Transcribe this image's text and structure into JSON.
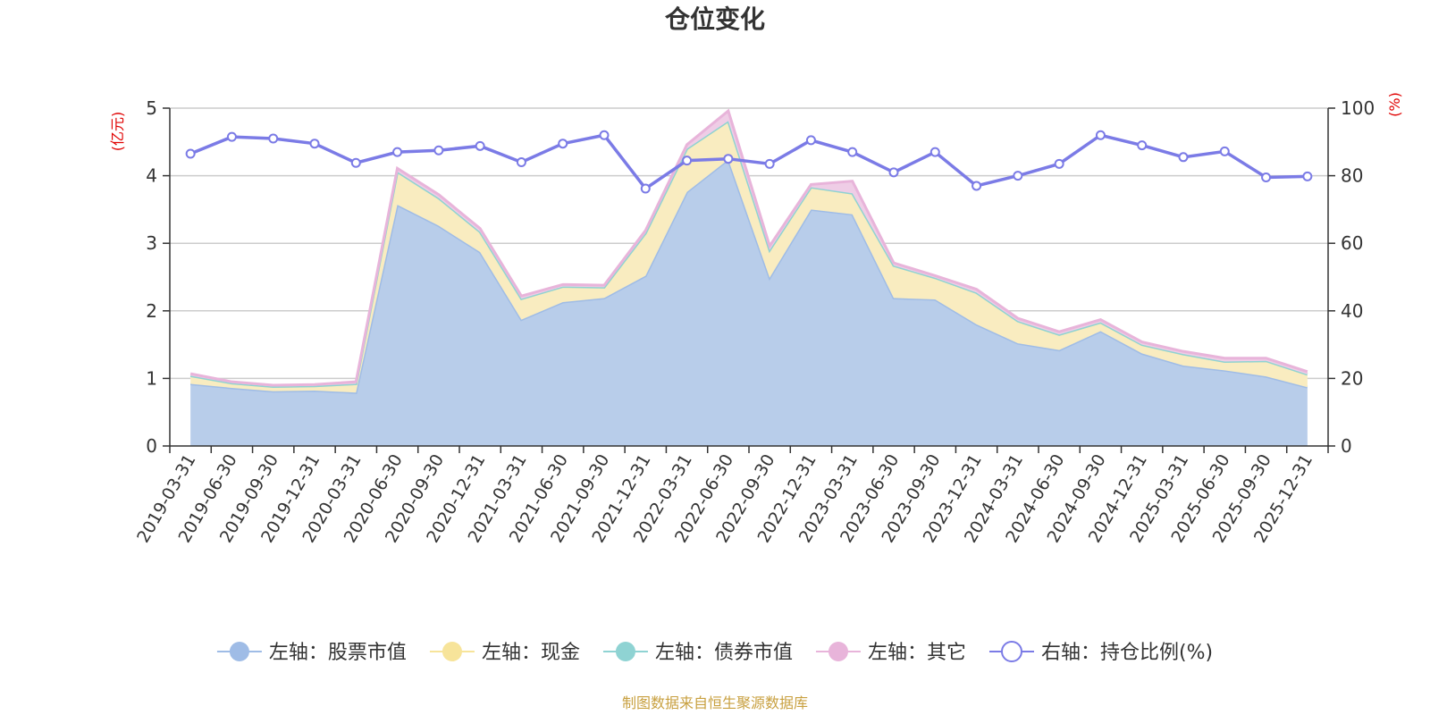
{
  "chart_data": {
    "type": "area",
    "title": "仓位变化",
    "source_text": "制图数据来自恒生聚源数据库",
    "categories": [
      "2019-03-31",
      "2019-06-30",
      "2019-09-30",
      "2019-12-31",
      "2020-03-31",
      "2020-06-30",
      "2020-09-30",
      "2020-12-31",
      "2021-03-31",
      "2021-06-30",
      "2021-09-30",
      "2021-12-31",
      "2022-03-31",
      "2022-06-30",
      "2022-09-30",
      "2022-12-31",
      "2023-03-31",
      "2023-06-30",
      "2023-09-30",
      "2023-12-31",
      "2024-03-31",
      "2024-06-30",
      "2024-09-30",
      "2024-12-31",
      "2025-03-31",
      "2025-06-30",
      "2025-09-30",
      "2025-12-31"
    ],
    "left_axis": {
      "name": "(亿元)",
      "min": 0,
      "max": 5,
      "ticks": [
        0,
        1,
        2,
        3,
        4,
        5
      ]
    },
    "right_axis": {
      "name": "(%)",
      "min": 0,
      "max": 100,
      "ticks": [
        0,
        20,
        40,
        60,
        80,
        100
      ]
    },
    "series": [
      {
        "name": "左轴：股票市值",
        "axis": "left",
        "type": "area",
        "color": "#9fbce6",
        "fill": "#b8cdea",
        "values": [
          0.92,
          0.86,
          0.81,
          0.82,
          0.79,
          3.57,
          3.26,
          2.87,
          1.87,
          2.13,
          2.19,
          2.52,
          3.76,
          4.24,
          2.49,
          3.5,
          3.43,
          2.19,
          2.17,
          1.8,
          1.52,
          1.42,
          1.7,
          1.37,
          1.19,
          1.12,
          1.03,
          0.87
        ]
      },
      {
        "name": "左轴：现金",
        "axis": "left",
        "type": "area",
        "color": "#f7e49a",
        "fill": "#f9ecc0",
        "values": [
          0.12,
          0.07,
          0.07,
          0.07,
          0.13,
          0.49,
          0.41,
          0.3,
          0.31,
          0.23,
          0.16,
          0.63,
          0.64,
          0.57,
          0.41,
          0.33,
          0.31,
          0.48,
          0.32,
          0.47,
          0.33,
          0.23,
          0.13,
          0.13,
          0.17,
          0.13,
          0.23,
          0.19
        ]
      },
      {
        "name": "左轴：债券市值",
        "axis": "left",
        "type": "area",
        "color": "#8fd3d3",
        "fill": "#bfe5e5",
        "values": [
          0,
          0,
          0,
          0,
          0,
          0,
          0,
          0,
          0,
          0,
          0,
          0,
          0,
          0,
          0,
          0,
          0,
          0,
          0,
          0,
          0,
          0,
          0,
          0,
          0,
          0,
          0,
          0
        ]
      },
      {
        "name": "左轴：其它",
        "axis": "left",
        "type": "area",
        "color": "#e8b4da",
        "fill": "#efcde6",
        "values": [
          0.03,
          0.02,
          0.02,
          0.02,
          0.03,
          0.05,
          0.05,
          0.05,
          0.04,
          0.03,
          0.03,
          0.04,
          0.06,
          0.15,
          0.06,
          0.04,
          0.18,
          0.04,
          0.03,
          0.05,
          0.04,
          0.04,
          0.04,
          0.04,
          0.04,
          0.05,
          0.04,
          0.04
        ]
      },
      {
        "name": "右轴：持仓比例(%)",
        "axis": "right",
        "type": "line",
        "color": "#7b7be6",
        "values": [
          86.5,
          91.5,
          91.0,
          89.5,
          83.8,
          87.0,
          87.5,
          88.8,
          84.0,
          89.5,
          92.0,
          76.2,
          84.5,
          85.0,
          83.5,
          90.5,
          87.0,
          81.0,
          87.0,
          77.0,
          80.0,
          83.5,
          92.0,
          89.0,
          85.5,
          87.2,
          79.5,
          79.8
        ]
      }
    ]
  }
}
